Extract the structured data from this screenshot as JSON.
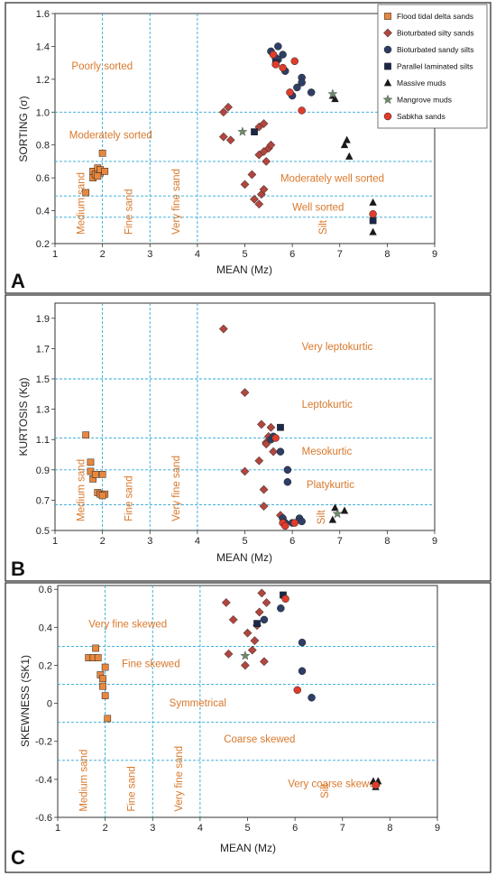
{
  "legend": [
    {
      "key": "flood",
      "label": "Flood tidal delta sands",
      "shape": "square",
      "color": "#e8873e"
    },
    {
      "key": "biosilty",
      "label": "Bioturbated silty sands",
      "shape": "diamond",
      "color": "#b0463e"
    },
    {
      "key": "biosandy",
      "label": "Bioturbated sandy silts",
      "shape": "circle",
      "color": "#2f3e66"
    },
    {
      "key": "parallel",
      "label": "Parallel laminated silts",
      "shape": "square",
      "color": "#1c2848"
    },
    {
      "key": "massive",
      "label": "Massive muds",
      "shape": "triangle",
      "color": "#1a1a1a"
    },
    {
      "key": "mangrove",
      "label": "Mangrove muds",
      "shape": "star",
      "color": "#6e8a6c"
    },
    {
      "key": "sabkha",
      "label": "Sabkha sands",
      "shape": "circle",
      "color": "#e03c2c"
    }
  ],
  "chart_data": [
    {
      "panel": "A",
      "type": "scatter",
      "xlabel": "MEAN (Mz)",
      "ylabel": "SORTING (σ)",
      "xlim": [
        1,
        9
      ],
      "ylim": [
        0.2,
        1.6
      ],
      "xticks": [
        "1",
        "2",
        "3",
        "4",
        "5",
        "6",
        "7",
        "8",
        "9"
      ],
      "yticks": [
        "0.2",
        "0.4",
        "0.6",
        "0.8",
        "1.0",
        "1.2",
        "1.4",
        "1.6"
      ],
      "vgrid": [
        2,
        3,
        4
      ],
      "hgrid": [
        0.36,
        0.49,
        0.7,
        1.0
      ],
      "annotations": [
        {
          "text": "Poorly sorted",
          "x": 1.35,
          "y": 1.26,
          "rotate": 0
        },
        {
          "text": "Moderately sorted",
          "x": 1.3,
          "y": 0.84,
          "rotate": 0
        },
        {
          "text": "Moderately well sorted",
          "x": 5.75,
          "y": 0.575,
          "rotate": 0
        },
        {
          "text": "Well sorted",
          "x": 6.0,
          "y": 0.4,
          "rotate": 0
        },
        {
          "text": "Medium sand",
          "x": 1.62,
          "y": 0.255,
          "rotate": -90
        },
        {
          "text": "Fine sand",
          "x": 2.62,
          "y": 0.255,
          "rotate": -90
        },
        {
          "text": "Very fine sand",
          "x": 3.62,
          "y": 0.255,
          "rotate": -90
        },
        {
          "text": "Silt",
          "x": 6.72,
          "y": 0.255,
          "rotate": -90
        }
      ],
      "series": [
        {
          "key": "flood",
          "points": [
            [
              1.65,
              0.51
            ],
            [
              1.8,
              0.6
            ],
            [
              1.8,
              0.64
            ],
            [
              1.85,
              0.62
            ],
            [
              1.9,
              0.66
            ],
            [
              1.95,
              0.63
            ],
            [
              1.95,
              0.65
            ],
            [
              2.0,
              0.75
            ],
            [
              2.05,
              0.64
            ],
            [
              1.9,
              0.61
            ]
          ]
        },
        {
          "key": "biosilty",
          "points": [
            [
              4.55,
              1.0
            ],
            [
              4.65,
              1.03
            ],
            [
              4.55,
              0.85
            ],
            [
              4.7,
              0.83
            ],
            [
              5.0,
              0.56
            ],
            [
              5.15,
              0.62
            ],
            [
              5.2,
              0.47
            ],
            [
              5.3,
              0.44
            ],
            [
              5.35,
              0.5
            ],
            [
              5.4,
              0.53
            ],
            [
              5.3,
              0.74
            ],
            [
              5.4,
              0.76
            ],
            [
              5.3,
              0.91
            ],
            [
              5.4,
              0.93
            ],
            [
              5.5,
              0.78
            ],
            [
              5.55,
              0.8
            ],
            [
              5.45,
              0.7
            ]
          ]
        },
        {
          "key": "biosandy",
          "points": [
            [
              5.55,
              1.37
            ],
            [
              5.7,
              1.4
            ],
            [
              5.65,
              1.33
            ],
            [
              5.7,
              1.32
            ],
            [
              5.8,
              1.35
            ],
            [
              5.85,
              1.25
            ],
            [
              6.0,
              1.1
            ],
            [
              6.1,
              1.15
            ],
            [
              6.2,
              1.21
            ],
            [
              6.2,
              1.18
            ],
            [
              6.4,
              1.12
            ]
          ]
        },
        {
          "key": "parallel",
          "points": [
            [
              5.2,
              0.88
            ],
            [
              5.65,
              1.3
            ],
            [
              7.7,
              0.34
            ]
          ]
        },
        {
          "key": "massive",
          "points": [
            [
              6.85,
              1.1
            ],
            [
              6.9,
              1.08
            ],
            [
              7.1,
              0.8
            ],
            [
              7.15,
              0.83
            ],
            [
              7.2,
              0.73
            ],
            [
              7.7,
              0.45
            ],
            [
              7.7,
              0.27
            ]
          ]
        },
        {
          "key": "mangrove",
          "points": [
            [
              4.95,
              0.88
            ],
            [
              6.85,
              1.11
            ]
          ]
        },
        {
          "key": "sabkha",
          "points": [
            [
              5.6,
              1.35
            ],
            [
              5.65,
              1.29
            ],
            [
              5.8,
              1.27
            ],
            [
              5.95,
              1.12
            ],
            [
              6.05,
              1.31
            ],
            [
              6.2,
              1.01
            ],
            [
              7.7,
              0.38
            ]
          ]
        }
      ]
    },
    {
      "panel": "B",
      "type": "scatter",
      "xlabel": "MEAN (Mz)",
      "ylabel": "KURTOSIS (Kg)",
      "xlim": [
        1,
        9
      ],
      "ylim": [
        0.5,
        2.0
      ],
      "xticks": [
        "1",
        "2",
        "3",
        "4",
        "5",
        "6",
        "7",
        "8",
        "9"
      ],
      "yticks": [
        "0.5",
        "0.7",
        "0.9",
        "1.1",
        "1.3",
        "1.5",
        "1.7",
        "1.9"
      ],
      "vgrid": [
        2,
        3,
        4
      ],
      "hgrid": [
        0.67,
        0.9,
        1.11,
        1.5
      ],
      "annotations": [
        {
          "text": "Very leptokurtic",
          "x": 6.2,
          "y": 1.69,
          "rotate": 0
        },
        {
          "text": "Leptokurtic",
          "x": 6.2,
          "y": 1.31,
          "rotate": 0
        },
        {
          "text": "Mesokurtic",
          "x": 6.2,
          "y": 1.0,
          "rotate": 0
        },
        {
          "text": "Platykurtic",
          "x": 6.3,
          "y": 0.78,
          "rotate": 0
        },
        {
          "text": "Medium sand",
          "x": 1.62,
          "y": 0.56,
          "rotate": -90
        },
        {
          "text": "Fine sand",
          "x": 2.62,
          "y": 0.56,
          "rotate": -90
        },
        {
          "text": "Very fine sand",
          "x": 3.62,
          "y": 0.56,
          "rotate": -90
        },
        {
          "text": "Silt",
          "x": 6.68,
          "y": 0.54,
          "rotate": -90
        }
      ],
      "series": [
        {
          "key": "flood",
          "points": [
            [
              1.65,
              1.13
            ],
            [
              1.75,
              0.95
            ],
            [
              1.75,
              0.89
            ],
            [
              1.8,
              0.84
            ],
            [
              1.85,
              0.87
            ],
            [
              1.9,
              0.75
            ],
            [
              1.95,
              0.74
            ],
            [
              2.0,
              0.87
            ],
            [
              2.05,
              0.74
            ],
            [
              2.0,
              0.73
            ]
          ]
        },
        {
          "key": "biosilty",
          "points": [
            [
              4.55,
              1.83
            ],
            [
              5.0,
              1.41
            ],
            [
              5.0,
              0.89
            ],
            [
              5.3,
              0.96
            ],
            [
              5.35,
              1.2
            ],
            [
              5.45,
              1.08
            ],
            [
              5.5,
              1.12
            ],
            [
              5.4,
              0.77
            ],
            [
              5.4,
              0.66
            ],
            [
              5.55,
              1.18
            ],
            [
              5.6,
              1.02
            ],
            [
              5.45,
              1.07
            ],
            [
              5.75,
              0.6
            ]
          ]
        },
        {
          "key": "biosandy",
          "points": [
            [
              5.55,
              1.1
            ],
            [
              5.6,
              1.12
            ],
            [
              5.75,
              1.02
            ],
            [
              5.9,
              0.9
            ],
            [
              5.9,
              0.82
            ],
            [
              5.8,
              0.58
            ],
            [
              5.85,
              0.55
            ],
            [
              6.0,
              0.55
            ],
            [
              6.15,
              0.58
            ],
            [
              6.2,
              0.56
            ]
          ]
        },
        {
          "key": "parallel",
          "points": [
            [
              5.75,
              1.18
            ]
          ]
        },
        {
          "key": "massive",
          "points": [
            [
              6.85,
              0.57
            ],
            [
              6.9,
              0.65
            ],
            [
              7.1,
              0.63
            ]
          ]
        },
        {
          "key": "mangrove",
          "points": [
            [
              6.95,
              0.61
            ]
          ]
        },
        {
          "key": "sabkha",
          "points": [
            [
              5.65,
              1.11
            ],
            [
              5.8,
              0.55
            ],
            [
              5.85,
              0.53
            ],
            [
              6.05,
              0.55
            ]
          ]
        }
      ]
    },
    {
      "panel": "C",
      "type": "scatter",
      "xlabel": "MEAN (Mz)",
      "ylabel": "SKEWNESS (SK1)",
      "xlim": [
        1,
        9
      ],
      "ylim": [
        -0.6,
        0.62
      ],
      "xticks": [
        "1",
        "2",
        "3",
        "4",
        "5",
        "6",
        "7",
        "8",
        "9"
      ],
      "yticks": [
        "-0.6",
        "-0.4",
        "-0.2",
        "0",
        "0.2",
        "0.4",
        "0.6"
      ],
      "vgrid": [
        2,
        3,
        4
      ],
      "hgrid": [
        -0.3,
        -0.1,
        0.1,
        0.3
      ],
      "annotations": [
        {
          "text": "Very fine skewed",
          "x": 1.65,
          "y": 0.4,
          "rotate": 0
        },
        {
          "text": "Fine skewed",
          "x": 2.35,
          "y": 0.19,
          "rotate": 0
        },
        {
          "text": "Symmetrical",
          "x": 3.35,
          "y": -0.015,
          "rotate": 0
        },
        {
          "text": "Coarse skewed",
          "x": 4.5,
          "y": -0.205,
          "rotate": 0
        },
        {
          "text": "Very coarse skewed",
          "x": 5.85,
          "y": -0.44,
          "rotate": 0
        },
        {
          "text": "Medium sand",
          "x": 1.62,
          "y": -0.57,
          "rotate": -90
        },
        {
          "text": "Fine sand",
          "x": 2.62,
          "y": -0.57,
          "rotate": -90
        },
        {
          "text": "Very fine sand",
          "x": 3.62,
          "y": -0.57,
          "rotate": -90
        },
        {
          "text": "Silt",
          "x": 6.7,
          "y": -0.5,
          "rotate": -90
        }
      ],
      "series": [
        {
          "key": "flood",
          "points": [
            [
              1.65,
              0.24
            ],
            [
              1.75,
              0.24
            ],
            [
              1.8,
              0.29
            ],
            [
              1.85,
              0.24
            ],
            [
              1.9,
              0.15
            ],
            [
              1.95,
              0.13
            ],
            [
              1.95,
              0.09
            ],
            [
              2.0,
              0.19
            ],
            [
              2.0,
              0.04
            ],
            [
              2.05,
              -0.08
            ]
          ]
        },
        {
          "key": "biosilty",
          "points": [
            [
              4.55,
              0.53
            ],
            [
              4.6,
              0.26
            ],
            [
              4.7,
              0.44
            ],
            [
              4.95,
              0.2
            ],
            [
              5.0,
              0.37
            ],
            [
              5.1,
              0.28
            ],
            [
              5.15,
              0.33
            ],
            [
              5.2,
              0.41
            ],
            [
              5.25,
              0.48
            ],
            [
              5.3,
              0.58
            ],
            [
              5.35,
              0.22
            ],
            [
              5.4,
              0.53
            ]
          ]
        },
        {
          "key": "biosandy",
          "points": [
            [
              5.35,
              0.44
            ],
            [
              5.7,
              0.5
            ],
            [
              6.15,
              0.32
            ],
            [
              6.15,
              0.17
            ],
            [
              6.35,
              0.03
            ]
          ]
        },
        {
          "key": "parallel",
          "points": [
            [
              5.2,
              0.42
            ],
            [
              5.75,
              0.57
            ]
          ]
        },
        {
          "key": "massive",
          "points": [
            [
              7.65,
              -0.41
            ],
            [
              7.7,
              -0.44
            ],
            [
              7.75,
              -0.41
            ]
          ]
        },
        {
          "key": "mangrove",
          "points": [
            [
              4.95,
              0.25
            ]
          ]
        },
        {
          "key": "sabkha",
          "points": [
            [
              5.8,
              0.55
            ],
            [
              6.05,
              0.07
            ],
            [
              7.7,
              -0.43
            ]
          ]
        }
      ]
    }
  ]
}
